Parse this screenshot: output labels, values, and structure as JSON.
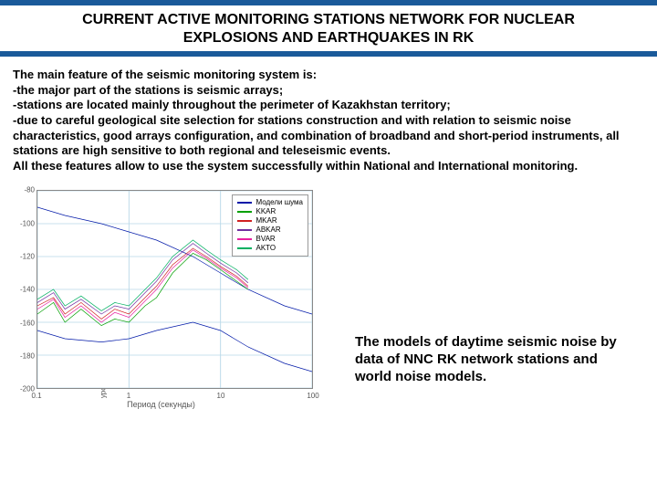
{
  "title_line1": "CURRENT ACTIVE MONITORING STATIONS NETWORK FOR NUCLEAR",
  "title_line2": "EXPLOSIONS AND EARTHQUAKES IN RK",
  "body": {
    "l1": "The main feature of the seismic monitoring system is:",
    "l2": "-the major part of the stations is seismic arrays;",
    "l3": "-stations are located mainly throughout the perimeter of Kazakhstan territory;",
    "l4": "-due to careful geological site selection for stations construction and with relation to seismic noise characteristics, good arrays configuration, and combination of broadband and short-period instruments, all stations are high sensitive to both regional and teleseismic events.",
    "l5": "All these features allow to use the system successfully within National and International monitoring."
  },
  "caption": "The models of daytime seismic noise by data of NNC RK network stations and world noise models.",
  "chart": {
    "type": "line",
    "xlabel": "Период (секунды)",
    "ylabel": "уровень спектральной плотности 10*LOG PSD M**2/S**4/Гц",
    "xscale": "log",
    "xlim": [
      0.1,
      100
    ],
    "xticks": [
      0.1,
      1,
      10,
      100
    ],
    "xticklabels": [
      "0.1",
      "1",
      "10",
      "100"
    ],
    "ylim": [
      -200,
      -80
    ],
    "yticks": [
      -200,
      -180,
      -160,
      -140,
      -120,
      -100,
      -80
    ],
    "grid_color": "#b8d8e8",
    "background_color": "#ffffff",
    "border_color": "#888888",
    "line_width": 1.4,
    "axis_fontsize": 8,
    "legend_fontsize": 8,
    "legend_position": "top-right",
    "series": [
      {
        "name": "Модели шума",
        "color": "#0018a8",
        "x": [
          0.1,
          0.2,
          0.5,
          1,
          2,
          5,
          10,
          20,
          50,
          100
        ],
        "y": [
          -90,
          -95,
          -100,
          -105,
          -110,
          -120,
          -130,
          -140,
          -150,
          -155
        ],
        "y2": [
          -165,
          -170,
          -172,
          -170,
          -165,
          -160,
          -165,
          -175,
          -185,
          -190
        ]
      },
      {
        "name": "KKAR",
        "color": "#00a000",
        "x": [
          0.1,
          0.15,
          0.2,
          0.3,
          0.5,
          0.7,
          1,
          1.5,
          2,
          3,
          5,
          7,
          10,
          15,
          20
        ],
        "y": [
          -155,
          -148,
          -160,
          -152,
          -162,
          -158,
          -160,
          -150,
          -145,
          -130,
          -118,
          -122,
          -128,
          -135,
          -140
        ]
      },
      {
        "name": "MKAR",
        "color": "#d02020",
        "x": [
          0.1,
          0.15,
          0.2,
          0.3,
          0.5,
          0.7,
          1,
          1.5,
          2,
          3,
          5,
          7,
          10,
          15,
          20
        ],
        "y": [
          -150,
          -145,
          -155,
          -148,
          -158,
          -152,
          -155,
          -145,
          -138,
          -125,
          -115,
          -120,
          -126,
          -132,
          -138
        ]
      },
      {
        "name": "ABKAR",
        "color": "#7030a0",
        "x": [
          0.1,
          0.15,
          0.2,
          0.3,
          0.5,
          0.7,
          1,
          1.5,
          2,
          3,
          5,
          7,
          10,
          15,
          20
        ],
        "y": [
          -148,
          -142,
          -152,
          -146,
          -155,
          -150,
          -152,
          -142,
          -135,
          -122,
          -112,
          -118,
          -124,
          -130,
          -136
        ]
      },
      {
        "name": "BVAR",
        "color": "#e820a0",
        "x": [
          0.1,
          0.15,
          0.2,
          0.3,
          0.5,
          0.7,
          1,
          1.5,
          2,
          3,
          5,
          7,
          10,
          15,
          20
        ],
        "y": [
          -152,
          -146,
          -157,
          -150,
          -160,
          -154,
          -157,
          -147,
          -140,
          -127,
          -116,
          -121,
          -127,
          -133,
          -139
        ]
      },
      {
        "name": "AKTO",
        "color": "#00b060",
        "x": [
          0.1,
          0.15,
          0.2,
          0.3,
          0.5,
          0.7,
          1,
          1.5,
          2,
          3,
          5,
          7,
          10,
          15,
          20
        ],
        "y": [
          -146,
          -140,
          -150,
          -144,
          -153,
          -148,
          -150,
          -140,
          -133,
          -120,
          -110,
          -116,
          -122,
          -128,
          -134
        ]
      }
    ]
  }
}
